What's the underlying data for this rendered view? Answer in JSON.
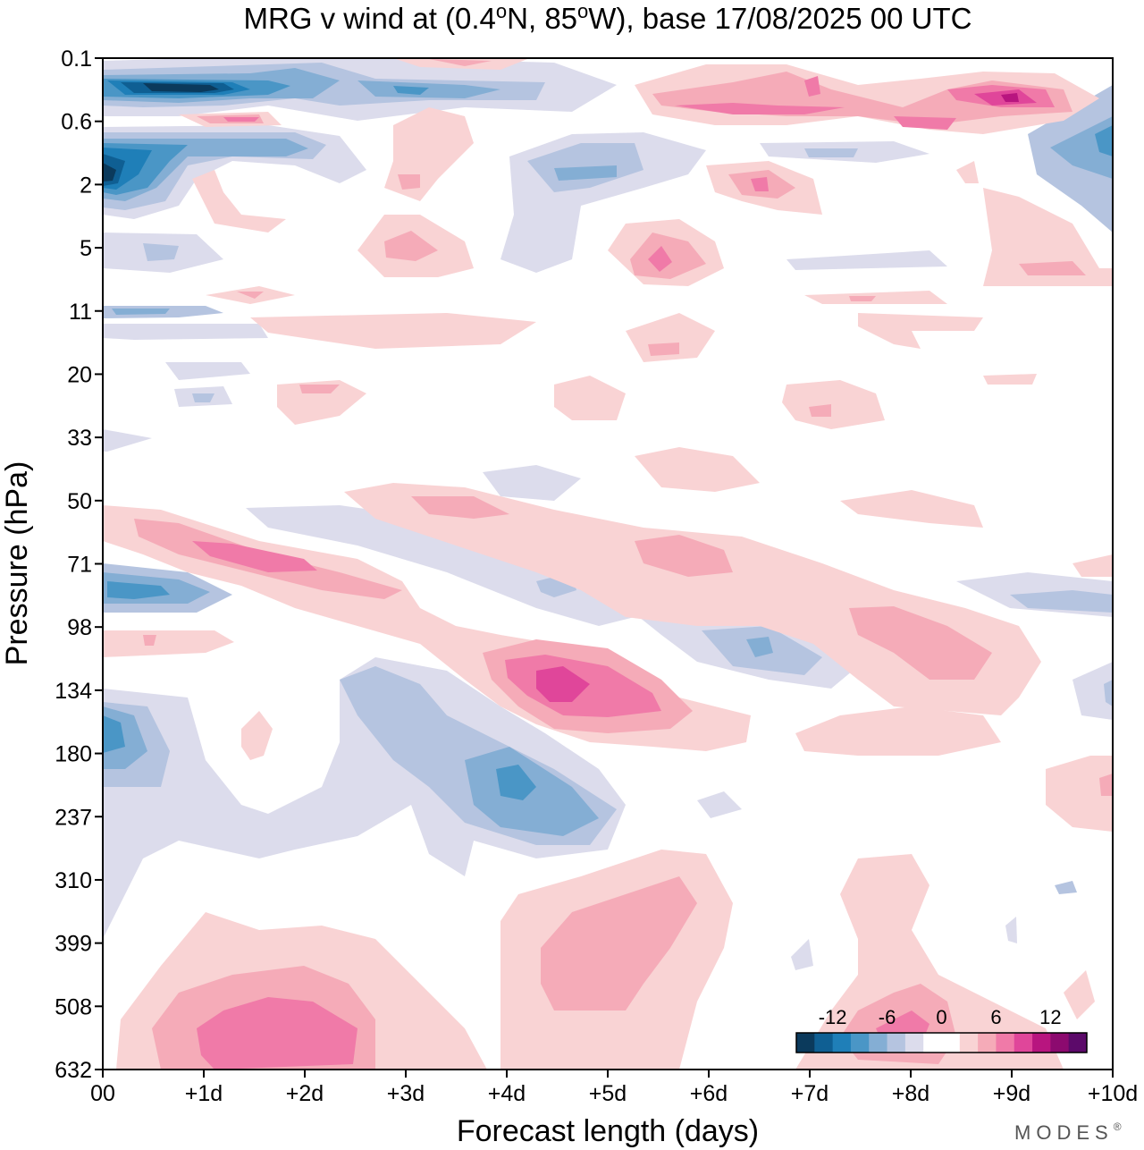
{
  "chart_data": {
    "type": "heatmap",
    "title_parts": {
      "prefix": "MRG v wind at (0.4",
      "deg1": "o",
      "mid": "N, 85",
      "deg2": "o",
      "suffix": "W),  base 17/08/2025  00 UTC"
    },
    "xlabel": "Forecast length (days)",
    "ylabel": "Pressure (hPa)",
    "x_range_days": [
      0,
      10
    ],
    "x_ticks": [
      "00",
      "+1d",
      "+2d",
      "+3d",
      "+4d",
      "+5d",
      "+6d",
      "+7d",
      "+8d",
      "+9d",
      "+10d"
    ],
    "y_ticks": [
      "0.1",
      "0.6",
      "2",
      "5",
      "11",
      "20",
      "33",
      "50",
      "71",
      "98",
      "134",
      "180",
      "237",
      "310",
      "399",
      "508",
      "632"
    ],
    "colorbar": {
      "levels": [
        -15,
        -12,
        -9,
        -6,
        -3,
        -1.5,
        1.5,
        3,
        6,
        9,
        12,
        15
      ],
      "colors": [
        "#0b3a5c",
        "#0f5f93",
        "#1f7fb8",
        "#4a96c6",
        "#84aed4",
        "#b5c4e0",
        "#dcdcec",
        "#ffffff",
        "#ffffff",
        "#f9d3d4",
        "#f5abb8",
        "#f07aa8",
        "#e0469a",
        "#b8157f",
        "#8c0a6f",
        "#5c0a6a"
      ],
      "tick_labels": [
        "-12",
        "-6",
        "0",
        "6",
        "12"
      ]
    },
    "features": [
      {
        "name": "strong-easterly-top",
        "x": [
          0.2,
          1.4
        ],
        "level": "0.3",
        "value": -15
      },
      {
        "name": "neg-band-2hPa",
        "x": [
          0,
          2.2
        ],
        "level": "1.5",
        "value": -12
      },
      {
        "name": "pos-upper-right",
        "x": [
          5.5,
          9.5
        ],
        "level": "0.4",
        "value": 12
      },
      {
        "name": "pos-71hPa",
        "x": [
          1,
          2.2
        ],
        "level": "71",
        "value": 9
      },
      {
        "name": "pos-134hPa",
        "x": [
          4,
          5.5
        ],
        "level": "134",
        "value": 12
      },
      {
        "name": "neg-180hPa",
        "x": [
          0,
          0.3
        ],
        "level": "180",
        "value": -9
      },
      {
        "name": "neg-237hPa",
        "x": [
          3.8,
          4.7
        ],
        "level": "220",
        "value": -9
      },
      {
        "name": "pos-surface",
        "x": [
          0.6,
          2.6
        ],
        "level": "560",
        "value": 9
      },
      {
        "name": "pos-400hPa",
        "x": [
          4,
          6
        ],
        "level": "400",
        "value": 6
      },
      {
        "name": "neg-110hPa",
        "x": [
          6,
          7
        ],
        "level": "110",
        "value": -6
      }
    ]
  },
  "brand": {
    "text": "MODES",
    "mark": "®"
  }
}
